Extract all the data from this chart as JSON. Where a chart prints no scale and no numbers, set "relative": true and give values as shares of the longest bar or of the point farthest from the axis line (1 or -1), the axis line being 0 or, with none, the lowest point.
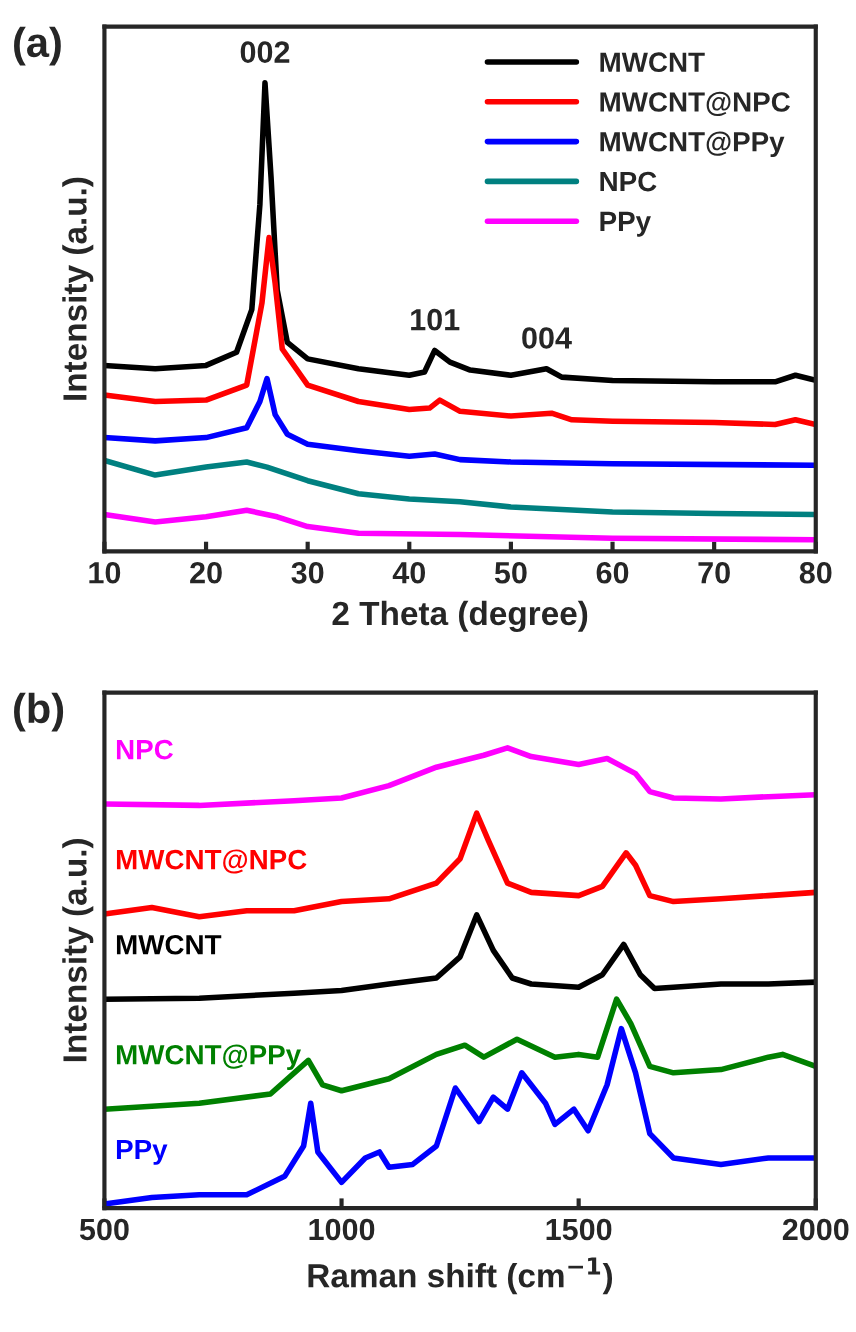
{
  "chart_data": [
    {
      "type": "line",
      "title": "(a)",
      "xlabel": "2 Theta (degree)",
      "ylabel": "Intensity (a.u.)",
      "relative": true,
      "xlim": [
        10,
        80
      ],
      "xticks": [
        10,
        20,
        30,
        40,
        50,
        60,
        70,
        80
      ],
      "tick_labels": "x",
      "legend": "top right",
      "grid": false,
      "annotations": [
        {
          "text": "002",
          "x": 25.8,
          "y": 1.0
        },
        {
          "text": "101",
          "x": 42.5,
          "y": 0.429
        },
        {
          "text": "004",
          "x": 53.5,
          "y": 0.39
        }
      ],
      "series": [
        {
          "name": "MWCNT",
          "color": "#000000",
          "x": [
            10,
            15,
            20,
            23,
            24.5,
            25.3,
            25.8,
            26.4,
            27,
            28,
            30,
            35,
            40,
            41.5,
            42.5,
            44,
            46,
            50,
            53.5,
            55,
            60,
            70,
            76,
            78,
            80
          ],
          "values": [
            0.397,
            0.39,
            0.397,
            0.425,
            0.516,
            0.741,
            1.0,
            0.797,
            0.558,
            0.446,
            0.411,
            0.39,
            0.376,
            0.383,
            0.429,
            0.404,
            0.387,
            0.376,
            0.39,
            0.372,
            0.365,
            0.362,
            0.362,
            0.376,
            0.365
          ]
        },
        {
          "name": "MWCNT@NPC",
          "color": "#ff0000",
          "x": [
            10,
            15,
            20,
            24,
            25.5,
            26.2,
            26.8,
            27.5,
            30,
            35,
            40,
            42,
            43,
            45,
            50,
            54,
            56,
            60,
            70,
            76,
            78,
            80
          ],
          "values": [
            0.334,
            0.32,
            0.323,
            0.355,
            0.53,
            0.67,
            0.572,
            0.432,
            0.355,
            0.32,
            0.303,
            0.306,
            0.323,
            0.299,
            0.289,
            0.295,
            0.281,
            0.278,
            0.275,
            0.271,
            0.281,
            0.271
          ]
        },
        {
          "name": "MWCNT@PPy",
          "color": "#0000ff",
          "x": [
            10,
            15,
            20,
            24,
            25.3,
            26,
            26.8,
            28,
            30,
            35,
            40,
            42.5,
            45,
            50,
            60,
            80
          ],
          "values": [
            0.243,
            0.236,
            0.243,
            0.264,
            0.32,
            0.369,
            0.292,
            0.25,
            0.229,
            0.215,
            0.203,
            0.208,
            0.196,
            0.191,
            0.187,
            0.184
          ]
        },
        {
          "name": "NPC",
          "color": "#008080",
          "x": [
            10,
            15,
            20,
            24,
            26,
            30,
            35,
            40,
            45,
            50,
            60,
            70,
            80
          ],
          "values": [
            0.194,
            0.163,
            0.18,
            0.191,
            0.18,
            0.151,
            0.123,
            0.112,
            0.106,
            0.095,
            0.084,
            0.081,
            0.079
          ]
        },
        {
          "name": "PPy",
          "color": "#ff00ff",
          "x": [
            10,
            15,
            20,
            24,
            27,
            30,
            35,
            45,
            60,
            80
          ],
          "values": [
            0.079,
            0.063,
            0.074,
            0.088,
            0.074,
            0.053,
            0.039,
            0.036,
            0.028,
            0.025
          ]
        }
      ]
    },
    {
      "type": "line",
      "title": "(b)",
      "xlabel": "Raman shift (cm$^{−1}$)",
      "ylabel": "Intensity (a.u.)",
      "relative": true,
      "xlim": [
        500,
        2000
      ],
      "xticks": [
        500,
        1000,
        1500,
        2000
      ],
      "tick_labels": "x",
      "legend": false,
      "grid": false,
      "series": [
        {
          "name": "NPC",
          "color": "#ff00ff",
          "x": [
            500,
            700,
            900,
            1000,
            1100,
            1200,
            1300,
            1350,
            1400,
            1500,
            1560,
            1620,
            1650,
            1700,
            1800,
            1900,
            2000
          ],
          "values": [
            0.878,
            0.875,
            0.885,
            0.891,
            0.918,
            0.958,
            0.984,
            1.0,
            0.981,
            0.964,
            0.977,
            0.944,
            0.905,
            0.891,
            0.889,
            0.894,
            0.898
          ]
        },
        {
          "name": "MWCNT@NPC",
          "color": "#ff0000",
          "x": [
            500,
            600,
            700,
            800,
            900,
            1000,
            1100,
            1200,
            1250,
            1285,
            1310,
            1350,
            1400,
            1500,
            1550,
            1600,
            1620,
            1650,
            1700,
            1800,
            1900,
            2000
          ],
          "values": [
            0.639,
            0.653,
            0.633,
            0.646,
            0.646,
            0.666,
            0.672,
            0.706,
            0.759,
            0.858,
            0.798,
            0.706,
            0.686,
            0.679,
            0.699,
            0.772,
            0.745,
            0.679,
            0.666,
            0.672,
            0.679,
            0.686
          ]
        },
        {
          "name": "MWCNT",
          "color": "#000000",
          "x": [
            500,
            700,
            900,
            1000,
            1100,
            1200,
            1250,
            1285,
            1320,
            1360,
            1400,
            1500,
            1550,
            1595,
            1630,
            1660,
            1700,
            1800,
            1900,
            2000
          ],
          "values": [
            0.454,
            0.456,
            0.467,
            0.473,
            0.487,
            0.5,
            0.546,
            0.637,
            0.56,
            0.5,
            0.487,
            0.48,
            0.507,
            0.573,
            0.507,
            0.477,
            0.48,
            0.487,
            0.487,
            0.491
          ]
        },
        {
          "name": "MWCNT@PPy",
          "color": "#008000",
          "x": [
            500,
            700,
            850,
            930,
            960,
            1000,
            1100,
            1200,
            1260,
            1300,
            1370,
            1450,
            1500,
            1540,
            1580,
            1610,
            1650,
            1700,
            1800,
            1900,
            1930,
            2000
          ],
          "values": [
            0.215,
            0.228,
            0.248,
            0.321,
            0.268,
            0.255,
            0.281,
            0.334,
            0.354,
            0.328,
            0.367,
            0.328,
            0.334,
            0.328,
            0.454,
            0.401,
            0.308,
            0.294,
            0.301,
            0.328,
            0.334,
            0.308
          ]
        },
        {
          "name": "PPy",
          "color": "#0000ff",
          "x": [
            500,
            600,
            700,
            800,
            880,
            920,
            935,
            950,
            1000,
            1050,
            1080,
            1100,
            1150,
            1200,
            1240,
            1290,
            1320,
            1350,
            1380,
            1430,
            1450,
            1490,
            1520,
            1560,
            1590,
            1620,
            1650,
            1700,
            1800,
            1900,
            2000
          ],
          "values": [
            0.009,
            0.023,
            0.029,
            0.029,
            0.069,
            0.135,
            0.228,
            0.122,
            0.056,
            0.109,
            0.122,
            0.089,
            0.095,
            0.135,
            0.261,
            0.188,
            0.241,
            0.215,
            0.294,
            0.228,
            0.182,
            0.215,
            0.168,
            0.268,
            0.39,
            0.294,
            0.162,
            0.109,
            0.095,
            0.109,
            0.109
          ]
        }
      ]
    }
  ]
}
